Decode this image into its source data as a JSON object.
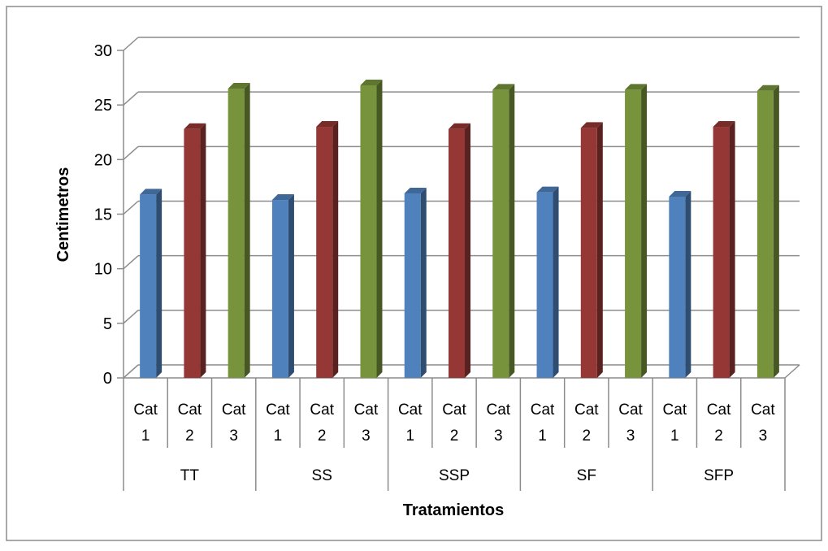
{
  "chart_data": {
    "type": "bar",
    "title": "",
    "xlabel": "Tratamientos",
    "ylabel": "Centimetros",
    "ylim": [
      0,
      30
    ],
    "yticks": [
      "0",
      "5",
      "10",
      "15",
      "20",
      "25",
      "30"
    ],
    "grid": true,
    "legend": "none",
    "groups": [
      {
        "name": "TT",
        "categories": [
          {
            "line1": "Cat",
            "line2": "1",
            "value": 16.8
          },
          {
            "line1": "Cat",
            "line2": "2",
            "value": 22.8
          },
          {
            "line1": "Cat",
            "line2": "3",
            "value": 26.5
          }
        ]
      },
      {
        "name": "SS",
        "categories": [
          {
            "line1": "Cat",
            "line2": "1",
            "value": 16.3
          },
          {
            "line1": "Cat",
            "line2": "2",
            "value": 23.0
          },
          {
            "line1": "Cat",
            "line2": "3",
            "value": 26.8
          }
        ]
      },
      {
        "name": "SSP",
        "categories": [
          {
            "line1": "Cat",
            "line2": "1",
            "value": 16.9
          },
          {
            "line1": "Cat",
            "line2": "2",
            "value": 22.8
          },
          {
            "line1": "Cat",
            "line2": "3",
            "value": 26.4
          }
        ]
      },
      {
        "name": "SF",
        "categories": [
          {
            "line1": "Cat",
            "line2": "1",
            "value": 17.0
          },
          {
            "line1": "Cat",
            "line2": "2",
            "value": 22.9
          },
          {
            "line1": "Cat",
            "line2": "3",
            "value": 26.4
          }
        ]
      },
      {
        "name": "SFP",
        "categories": [
          {
            "line1": "Cat",
            "line2": "1",
            "value": 16.6
          },
          {
            "line1": "Cat",
            "line2": "2",
            "value": 23.0
          },
          {
            "line1": "Cat",
            "line2": "3",
            "value": 26.3
          }
        ]
      }
    ],
    "colors": [
      "#4f81bd",
      "#953735",
      "#77933c"
    ]
  }
}
